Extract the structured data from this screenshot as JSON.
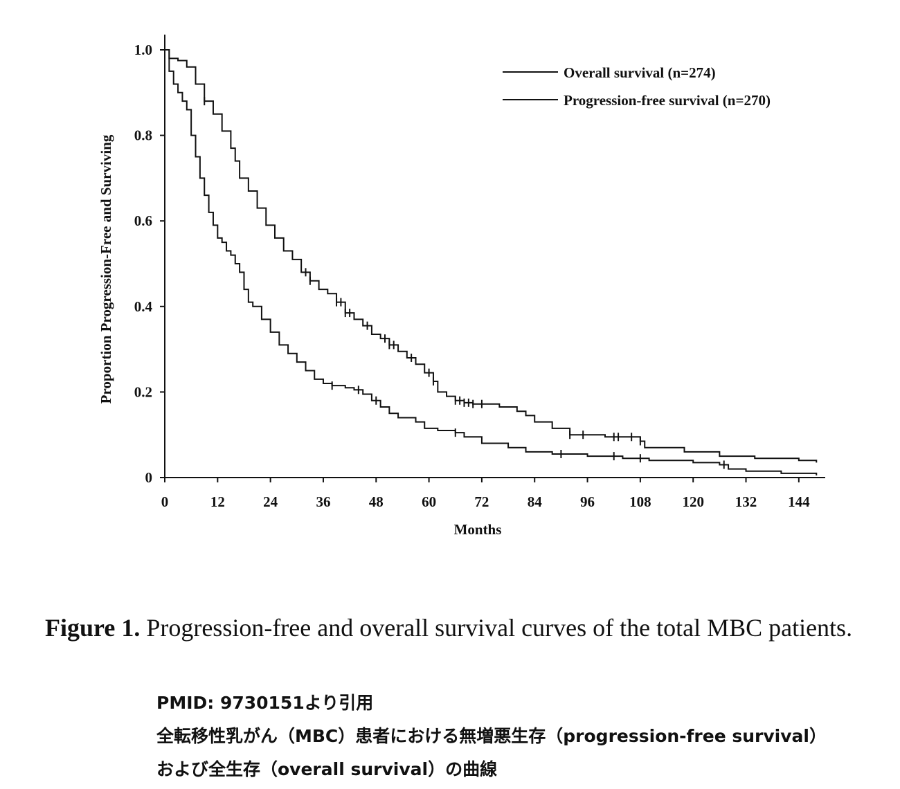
{
  "chart_data": {
    "type": "line",
    "step": true,
    "title": "",
    "xlabel": "Months",
    "ylabel": "Proportion Progression-Free and Surviving",
    "xlim": [
      0,
      150
    ],
    "ylim": [
      0,
      1.0
    ],
    "x_ticks": [
      0,
      12,
      24,
      36,
      48,
      60,
      72,
      84,
      96,
      108,
      120,
      132,
      144
    ],
    "x_tick_labels": [
      "0",
      "12",
      "24",
      "36",
      "48",
      "60",
      "72",
      "84",
      "96",
      "108",
      "120",
      "132",
      "144"
    ],
    "y_ticks": [
      0,
      0.2,
      0.4,
      0.6,
      0.8,
      1.0
    ],
    "y_tick_labels": [
      "0",
      "0.2",
      "0.4",
      "0.6",
      "0.8",
      "1.0"
    ],
    "legend_position": "top-right",
    "series": [
      {
        "name": "Overall survival (n=274)",
        "points": [
          [
            0,
            1.0
          ],
          [
            1,
            0.98
          ],
          [
            3,
            0.975
          ],
          [
            5,
            0.96
          ],
          [
            7,
            0.92
          ],
          [
            9,
            0.88
          ],
          [
            11,
            0.85
          ],
          [
            13,
            0.81
          ],
          [
            15,
            0.77
          ],
          [
            16,
            0.74
          ],
          [
            17,
            0.7
          ],
          [
            19,
            0.67
          ],
          [
            21,
            0.63
          ],
          [
            23,
            0.59
          ],
          [
            25,
            0.56
          ],
          [
            27,
            0.53
          ],
          [
            29,
            0.51
          ],
          [
            31,
            0.48
          ],
          [
            33,
            0.46
          ],
          [
            35,
            0.44
          ],
          [
            37,
            0.43
          ],
          [
            39,
            0.41
          ],
          [
            41,
            0.385
          ],
          [
            43,
            0.37
          ],
          [
            45,
            0.355
          ],
          [
            47,
            0.335
          ],
          [
            49,
            0.325
          ],
          [
            51,
            0.31
          ],
          [
            53,
            0.295
          ],
          [
            55,
            0.28
          ],
          [
            57,
            0.265
          ],
          [
            59,
            0.245
          ],
          [
            61,
            0.225
          ],
          [
            62,
            0.2
          ],
          [
            64,
            0.19
          ],
          [
            66,
            0.18
          ],
          [
            68,
            0.175
          ],
          [
            70,
            0.172
          ],
          [
            76,
            0.165
          ],
          [
            80,
            0.155
          ],
          [
            82,
            0.145
          ],
          [
            84,
            0.13
          ],
          [
            88,
            0.115
          ],
          [
            92,
            0.1
          ],
          [
            100,
            0.095
          ],
          [
            108,
            0.085
          ],
          [
            109,
            0.07
          ],
          [
            118,
            0.06
          ],
          [
            126,
            0.05
          ],
          [
            134,
            0.045
          ],
          [
            144,
            0.04
          ],
          [
            148,
            0.035
          ]
        ],
        "censor_x": [
          9,
          32,
          33,
          39,
          40,
          41,
          42,
          46,
          50,
          51,
          52,
          56,
          60,
          61,
          66,
          67,
          68,
          69,
          70,
          72,
          92,
          95,
          102,
          103,
          106,
          108
        ]
      },
      {
        "name": "Progression-free survival (n=270)",
        "points": [
          [
            0,
            1.0
          ],
          [
            1,
            0.95
          ],
          [
            2,
            0.92
          ],
          [
            3,
            0.9
          ],
          [
            4,
            0.88
          ],
          [
            5,
            0.86
          ],
          [
            6,
            0.8
          ],
          [
            7,
            0.75
          ],
          [
            8,
            0.7
          ],
          [
            9,
            0.66
          ],
          [
            10,
            0.62
          ],
          [
            11,
            0.59
          ],
          [
            12,
            0.56
          ],
          [
            13,
            0.55
          ],
          [
            14,
            0.53
          ],
          [
            15,
            0.52
          ],
          [
            16,
            0.5
          ],
          [
            17,
            0.48
          ],
          [
            18,
            0.44
          ],
          [
            19,
            0.41
          ],
          [
            20,
            0.4
          ],
          [
            22,
            0.37
          ],
          [
            24,
            0.34
          ],
          [
            26,
            0.31
          ],
          [
            28,
            0.29
          ],
          [
            30,
            0.27
          ],
          [
            32,
            0.25
          ],
          [
            34,
            0.23
          ],
          [
            36,
            0.22
          ],
          [
            38,
            0.215
          ],
          [
            41,
            0.21
          ],
          [
            43,
            0.205
          ],
          [
            45,
            0.195
          ],
          [
            47,
            0.18
          ],
          [
            49,
            0.165
          ],
          [
            51,
            0.15
          ],
          [
            53,
            0.14
          ],
          [
            57,
            0.13
          ],
          [
            59,
            0.115
          ],
          [
            62,
            0.11
          ],
          [
            66,
            0.105
          ],
          [
            68,
            0.095
          ],
          [
            72,
            0.08
          ],
          [
            78,
            0.07
          ],
          [
            82,
            0.06
          ],
          [
            88,
            0.055
          ],
          [
            96,
            0.05
          ],
          [
            104,
            0.045
          ],
          [
            110,
            0.04
          ],
          [
            120,
            0.035
          ],
          [
            126,
            0.03
          ],
          [
            128,
            0.02
          ],
          [
            132,
            0.015
          ],
          [
            140,
            0.01
          ],
          [
            148,
            0.005
          ]
        ],
        "censor_x": [
          38,
          44,
          48,
          66,
          90,
          102,
          108,
          127
        ]
      }
    ]
  },
  "caption": {
    "label": "Figure 1.",
    "text": "Progression-free and overall survival curves of the total MBC patients."
  },
  "japanese_note": {
    "line1": "PMID: 9730151より引用",
    "line2": "全転移性乳がん（MBC）患者における無増悪生存（progression-free survival）",
    "line3": "および全生存（overall survival）の曲線"
  },
  "colors": {
    "ink": "#111111",
    "background": "#ffffff"
  }
}
